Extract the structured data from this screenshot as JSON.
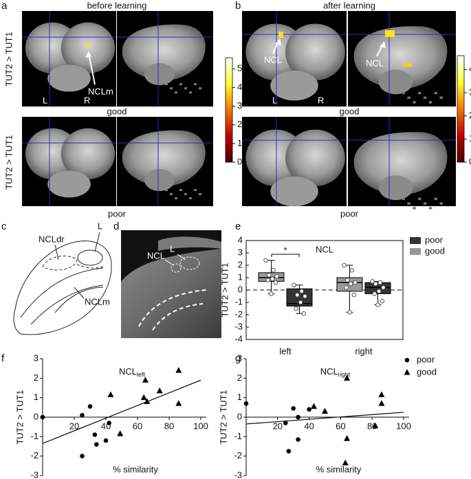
{
  "panels": {
    "a": {
      "letter": "a",
      "title": "before learning",
      "ylabel_top": "TUT2 > TUT1",
      "ylabel_bottom": "TUT2 > TUT1",
      "row_top": "good",
      "row_bottom": "poor",
      "annotation": "NCLm",
      "hemi_left": "L",
      "hemi_right": "R"
    },
    "b": {
      "letter": "b",
      "title": "after learning",
      "row_top": "good",
      "row_bottom": "poor",
      "annotation_1": "NCL",
      "annotation_2": "NCL",
      "hemi_left": "L",
      "hemi_right": "R"
    },
    "c": {
      "letter": "c",
      "labels": [
        "NCLdr",
        "L",
        "NCLm"
      ]
    },
    "d": {
      "letter": "d",
      "labels": [
        "L",
        "NCL"
      ]
    },
    "e": {
      "letter": "e"
    },
    "f": {
      "letter": "f"
    },
    "g": {
      "letter": "g"
    }
  },
  "chart_data": [
    {
      "type": "colorbar",
      "colors": [
        "#4a0000",
        "#c00000",
        "#f07800",
        "#ffff30",
        "#ffffff"
      ],
      "ylim": [
        0,
        5.6
      ],
      "yticks": [
        0,
        1,
        2,
        3,
        4,
        5
      ]
    },
    {
      "type": "colorbar",
      "colors": [
        "#4a0000",
        "#c00000",
        "#f07800",
        "#ffff30",
        "#ffffff"
      ],
      "ylim": [
        0,
        4.6
      ],
      "yticks": [
        0,
        1,
        2,
        3,
        4
      ]
    },
    {
      "type": "box",
      "title": "NCL",
      "ylabel": "TUT2 > TUT1",
      "categories": [
        "left",
        "right"
      ],
      "ylim": [
        -4,
        4
      ],
      "yticks": [
        -4,
        -3,
        -2,
        -1,
        0,
        1,
        2,
        3,
        4
      ],
      "annotation": "*",
      "series": [
        {
          "name": "poor",
          "color": "#333333",
          "boxes": [
            {
              "low": -1.9,
              "q1": -1.3,
              "median": -1.1,
              "q3": 0.1,
              "high": 0.4
            },
            {
              "low": -1.2,
              "q1": -0.3,
              "median": 0.2,
              "q3": 0.6,
              "high": 0.7
            }
          ],
          "points": [
            [
              0.4,
              -0.1,
              -0.4,
              -0.5,
              -1.0,
              -1.5,
              -1.9
            ],
            [
              0.7,
              0.6,
              0.5,
              0.2,
              -0.1,
              -0.3,
              -0.9,
              -1.2
            ]
          ]
        },
        {
          "name": "good",
          "color": "#999999",
          "boxes": [
            {
              "low": -0.3,
              "q1": 0.7,
              "median": 1.0,
              "q3": 1.4,
              "high": 2.4
            },
            {
              "low": -1.8,
              "q1": -0.1,
              "median": 0.6,
              "q3": 1.0,
              "high": 2.0
            }
          ],
          "points": [
            [
              2.4,
              1.6,
              1.2,
              1.1,
              0.9,
              0.8,
              0.6,
              -0.3
            ],
            [
              2.0,
              1.6,
              0.8,
              0.6,
              0.5,
              0.2,
              -0.4,
              -1.8
            ]
          ]
        }
      ]
    },
    {
      "type": "scatter",
      "title": "NCL",
      "title_sub": "left",
      "xlabel": "% similarity",
      "ylabel": "TUT2 > TUT1",
      "xlim": [
        0,
        100
      ],
      "ylim": [
        -3,
        3
      ],
      "xticks": [
        20,
        40,
        60,
        80,
        100
      ],
      "yticks": [
        -3,
        -2,
        -1,
        0,
        1,
        2,
        3
      ],
      "series": [
        {
          "name": "poor",
          "marker": "circle",
          "color": "#000000",
          "x": [
            0,
            25,
            30,
            33,
            25,
            34,
            40,
            42
          ],
          "y": [
            0,
            0.1,
            0.55,
            -0.9,
            -2.0,
            -1.4,
            -1.2,
            -0.3
          ]
        },
        {
          "name": "good",
          "marker": "triangle",
          "color": "#000000",
          "x": [
            43,
            49,
            64,
            65,
            66,
            74,
            86,
            86
          ],
          "y": [
            1.15,
            -0.85,
            1.0,
            1.9,
            0.8,
            1.35,
            2.4,
            0.7
          ]
        }
      ],
      "fit": {
        "x": [
          0,
          100
        ],
        "y": [
          -1.35,
          1.9
        ]
      }
    },
    {
      "type": "scatter",
      "title": "NCL",
      "title_sub": "right",
      "xlabel": "% similarity",
      "ylabel": "TUT2 > TUT1",
      "xlim": [
        0,
        100
      ],
      "ylim": [
        -3,
        3
      ],
      "xticks": [
        20,
        40,
        60,
        80,
        100
      ],
      "yticks": [
        -3,
        -2,
        -1,
        0,
        1,
        2,
        3
      ],
      "legend": "upper right",
      "series": [
        {
          "name": "poor",
          "marker": "circle",
          "color": "#000000",
          "x": [
            0,
            25,
            27,
            30,
            33,
            33,
            40
          ],
          "y": [
            0.7,
            -0.3,
            -1.75,
            0.45,
            0.0,
            -1.15,
            0.4
          ]
        },
        {
          "name": "good",
          "marker": "triangle",
          "color": "#000000",
          "x": [
            43,
            50,
            64,
            64,
            63,
            82,
            86,
            86
          ],
          "y": [
            0.55,
            0.3,
            2.0,
            -1.1,
            -2.35,
            -0.45,
            1.15,
            0.7
          ]
        }
      ],
      "fit": {
        "x": [
          0,
          100
        ],
        "y": [
          -0.35,
          0.25
        ]
      }
    }
  ]
}
